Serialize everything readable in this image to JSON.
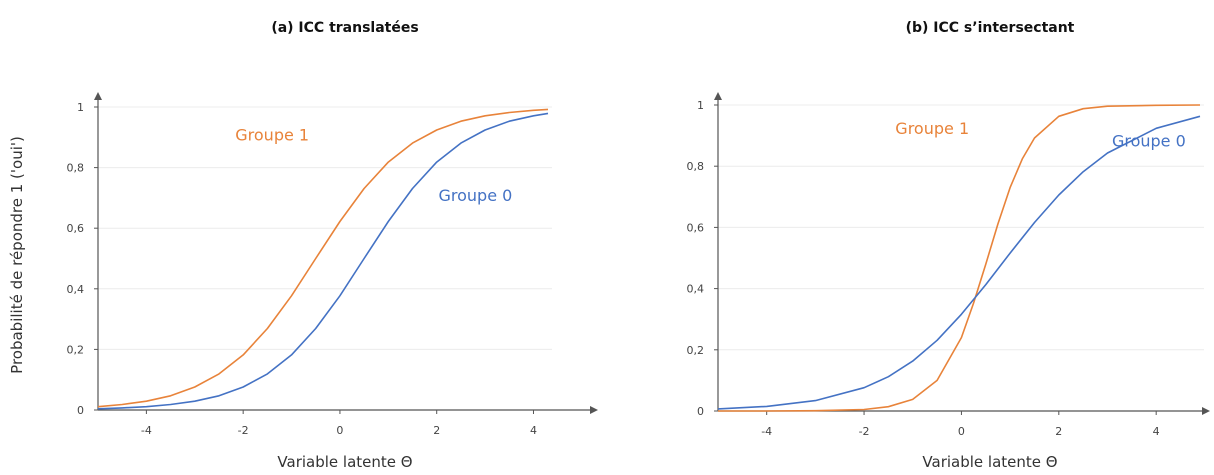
{
  "figure": {
    "ylabel": "Probabilité de répondre 1 ('oui')"
  },
  "chart_data": [
    {
      "type": "line",
      "title": "(a) ICC translatées",
      "xlabel": "Variable latente Θ",
      "xlim": [
        -5,
        4.3
      ],
      "ylim": [
        0,
        1
      ],
      "xticks": [
        "-4",
        "-2",
        "0",
        "2",
        "4"
      ],
      "yticks": [
        "0",
        "0,2",
        "0,4",
        "0,6",
        "0,8",
        "1"
      ],
      "grid": "horizontal",
      "series": [
        {
          "name": "Groupe 1",
          "color": "#E8833A",
          "x": [
            -5,
            -4.5,
            -4,
            -3.5,
            -3,
            -2.5,
            -2,
            -1.5,
            -1,
            -0.5,
            0,
            0.5,
            1,
            1.5,
            2,
            2.5,
            3,
            3.5,
            4,
            4.3
          ],
          "y": [
            0.011,
            0.018,
            0.029,
            0.047,
            0.076,
            0.119,
            0.182,
            0.269,
            0.377,
            0.5,
            0.622,
            0.731,
            0.818,
            0.881,
            0.924,
            0.953,
            0.971,
            0.982,
            0.989,
            0.992
          ]
        },
        {
          "name": "Groupe 0",
          "color": "#4472C4",
          "x": [
            -5,
            -4.5,
            -4,
            -3.5,
            -3,
            -2.5,
            -2,
            -1.5,
            -1,
            -0.5,
            0,
            0.5,
            1,
            1.5,
            2,
            2.5,
            3,
            3.5,
            4,
            4.3
          ],
          "y": [
            0.004,
            0.007,
            0.011,
            0.018,
            0.029,
            0.047,
            0.076,
            0.119,
            0.182,
            0.269,
            0.377,
            0.5,
            0.622,
            0.731,
            0.818,
            0.881,
            0.924,
            0.953,
            0.971,
            0.979
          ]
        }
      ],
      "annotations": [
        {
          "text": "Groupe 1",
          "series": 0,
          "x": -1.4,
          "y": 0.89
        },
        {
          "text": "Groupe 0",
          "series": 1,
          "x": 2.8,
          "y": 0.69
        }
      ]
    },
    {
      "type": "line",
      "title": "(b) ICC s’intersectant",
      "xlabel": "Variable latente Θ",
      "xlim": [
        -5,
        4.9
      ],
      "ylim": [
        0,
        1
      ],
      "xticks": [
        "-4",
        "-2",
        "0",
        "2",
        "4"
      ],
      "yticks": [
        "0",
        "0,2",
        "0,4",
        "0,6",
        "0,8",
        "1"
      ],
      "grid": "horizontal",
      "series": [
        {
          "name": "Groupe 1",
          "color": "#E8833A",
          "x": [
            -5,
            -4,
            -3,
            -2,
            -1.5,
            -1,
            -0.5,
            0,
            0.25,
            0.5,
            0.75,
            1,
            1.25,
            1.5,
            2,
            2.5,
            3,
            4,
            4.9
          ],
          "y": [
            0.0,
            0.0,
            0.001,
            0.005,
            0.014,
            0.038,
            0.1,
            0.24,
            0.353,
            0.48,
            0.611,
            0.73,
            0.824,
            0.892,
            0.963,
            0.988,
            0.996,
            0.999,
            1.0
          ]
        },
        {
          "name": "Groupe 0",
          "color": "#4472C4",
          "x": [
            -5,
            -4,
            -3,
            -2,
            -1.5,
            -1,
            -0.5,
            0,
            0.5,
            1,
            1.5,
            2,
            2.5,
            3,
            4,
            4.9
          ],
          "y": [
            0.007,
            0.015,
            0.034,
            0.076,
            0.112,
            0.163,
            0.231,
            0.316,
            0.413,
            0.516,
            0.616,
            0.706,
            0.782,
            0.843,
            0.924,
            0.963
          ]
        }
      ],
      "annotations": [
        {
          "text": "Groupe 1",
          "series": 0,
          "x": -0.6,
          "y": 0.905
        },
        {
          "text": "Groupe 0",
          "series": 1,
          "x": 3.85,
          "y": 0.865
        }
      ]
    }
  ]
}
